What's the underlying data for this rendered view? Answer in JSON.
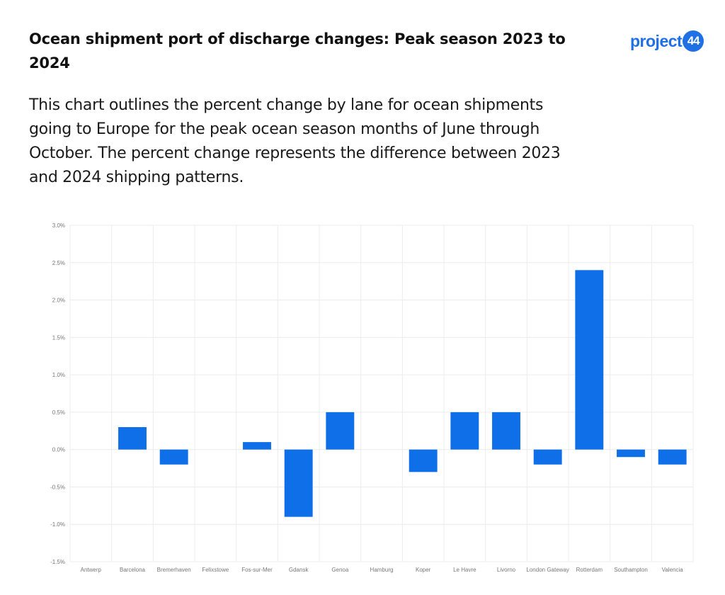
{
  "header": {
    "title": "Ocean shipment port of discharge changes: Peak season 2023 to 2024",
    "subtitle": "This chart outlines the percent change by lane for ocean shipments going to Europe for the peak ocean season months of June through October. The percent change represents the difference between 2023 and 2024 shipping patterns.",
    "logo_text": "project",
    "logo_badge": "44"
  },
  "colors": {
    "bar": "#0f6fe8",
    "grid": "#ececec",
    "brand": "#1f6fe5"
  },
  "chart_data": {
    "type": "bar",
    "categories": [
      "Antwerp",
      "Barcelona",
      "Bremerhaven",
      "Felixstowe",
      "Fos-sur-Mer",
      "Gdansk",
      "Genoa",
      "Hamburg",
      "Koper",
      "Le Havre",
      "Livorno",
      "London Gateway",
      "Rotterdam",
      "Southampton",
      "Valencia"
    ],
    "values": [
      0.0,
      0.3,
      -0.2,
      0.0,
      0.1,
      -0.9,
      0.5,
      0.0,
      -0.3,
      0.5,
      0.5,
      -0.2,
      2.4,
      -0.1,
      -0.2
    ],
    "ylim": [
      -1.5,
      3.0
    ],
    "yticks": [
      3.0,
      2.5,
      2.0,
      1.5,
      1.0,
      0.5,
      0.0,
      -0.5,
      -1.0,
      -1.5
    ],
    "ytick_labels": [
      "3.0%",
      "2.5%",
      "2.0%",
      "1.5%",
      "1.0%",
      "0.5%",
      "0.0%",
      "-0.5%",
      "-1.0%",
      "-1.5%"
    ],
    "grid": true,
    "legend": "none"
  }
}
